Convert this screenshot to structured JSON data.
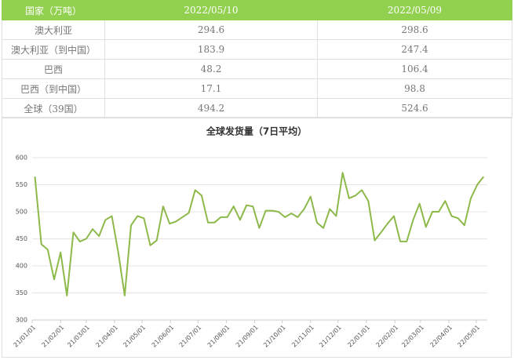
{
  "table": {
    "header": [
      "国家（万吨）",
      "2022/05/10",
      "2022/05/09"
    ],
    "rows": [
      [
        "澳大利亚",
        "294.6",
        "298.6"
      ],
      [
        "澳大利亚（到中国）",
        "183.9",
        "247.4"
      ],
      [
        "巴西",
        "48.2",
        "106.4"
      ],
      [
        "巴西（到中国）",
        "17.1",
        "98.8"
      ],
      [
        "全球（39国）",
        "494.2",
        "524.6"
      ]
    ]
  },
  "chart_data": {
    "type": "line",
    "title": "全球发货量（7日平均）",
    "color": "#8db94a",
    "grid": true,
    "x": [
      "21/01/04",
      "21/01/11",
      "21/01/18",
      "21/01/25",
      "21/02/01",
      "21/02/08",
      "21/02/15",
      "21/02/22",
      "21/03/01",
      "21/03/08",
      "21/03/15",
      "21/03/22",
      "21/03/29",
      "21/04/05",
      "21/04/12",
      "21/04/19",
      "21/04/26",
      "21/05/03",
      "21/05/10",
      "21/05/17",
      "21/05/24",
      "21/05/31",
      "21/06/07",
      "21/06/14",
      "21/06/21",
      "21/06/28",
      "21/07/05",
      "21/07/12",
      "21/07/19",
      "21/07/26",
      "21/08/02",
      "21/08/09",
      "21/08/16",
      "21/08/23",
      "21/08/30",
      "21/09/06",
      "21/09/13",
      "21/09/20",
      "21/09/27",
      "21/10/04",
      "21/10/11",
      "21/10/18",
      "21/10/25",
      "21/11/01",
      "21/11/08",
      "21/11/15",
      "21/11/22",
      "21/11/29",
      "21/12/06",
      "21/12/13",
      "21/12/20",
      "21/12/27",
      "22/01/03",
      "22/01/10",
      "22/01/17",
      "22/01/24",
      "22/01/31",
      "22/02/07",
      "22/02/14",
      "22/02/21",
      "22/02/28",
      "22/03/07",
      "22/03/14",
      "22/03/21",
      "22/03/28",
      "22/04/04",
      "22/04/11",
      "22/04/18",
      "22/04/25",
      "22/05/02",
      "22/05/09"
    ],
    "values": [
      565,
      440,
      430,
      375,
      425,
      345,
      462,
      445,
      450,
      468,
      455,
      485,
      492,
      425,
      345,
      475,
      492,
      488,
      438,
      447,
      510,
      478,
      482,
      490,
      498,
      540,
      530,
      480,
      480,
      490,
      490,
      510,
      485,
      512,
      510,
      470,
      502,
      502,
      500,
      490,
      497,
      490,
      505,
      528,
      480,
      470,
      505,
      492,
      572,
      525,
      530,
      540,
      520,
      447,
      462,
      478,
      492,
      445,
      445,
      485,
      515,
      472,
      500,
      500,
      520,
      492,
      488,
      475,
      525,
      550,
      565
    ],
    "xlim": [
      "21/01/01",
      "22/05/13"
    ],
    "xticks": [
      "21/01/01",
      "21/02/01",
      "21/03/01",
      "21/04/01",
      "21/05/01",
      "21/06/01",
      "21/07/01",
      "21/08/01",
      "21/09/01",
      "21/10/01",
      "21/11/01",
      "21/12/01",
      "22/01/01",
      "22/02/01",
      "22/03/01",
      "22/04/01",
      "22/05/01"
    ],
    "ylim": [
      300,
      600
    ],
    "yticks": [
      300,
      350,
      400,
      450,
      500,
      550,
      600
    ]
  }
}
